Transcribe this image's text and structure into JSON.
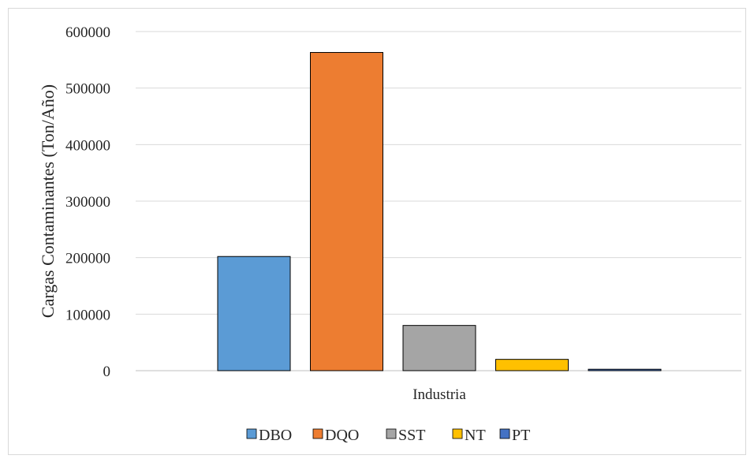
{
  "chart_data": {
    "type": "bar",
    "categories": [
      "Industria"
    ],
    "series": [
      {
        "name": "DBO",
        "values": [
          202000
        ],
        "color": "#5b9bd5"
      },
      {
        "name": "DQO",
        "values": [
          563000
        ],
        "color": "#ed7d31"
      },
      {
        "name": "SST",
        "values": [
          80000
        ],
        "color": "#a5a5a5"
      },
      {
        "name": "NT",
        "values": [
          20000
        ],
        "color": "#ffc000"
      },
      {
        "name": "PT",
        "values": [
          2500
        ],
        "color": "#4472c4"
      }
    ],
    "title": "",
    "xlabel": "",
    "ylabel": "Cargas Contaminantes (Ton/Año)",
    "ylim": [
      0,
      600000
    ],
    "yticks": [
      "0",
      "100000",
      "200000",
      "300000",
      "400000",
      "500000",
      "600000"
    ],
    "grid": true,
    "legend_position": "bottom"
  }
}
